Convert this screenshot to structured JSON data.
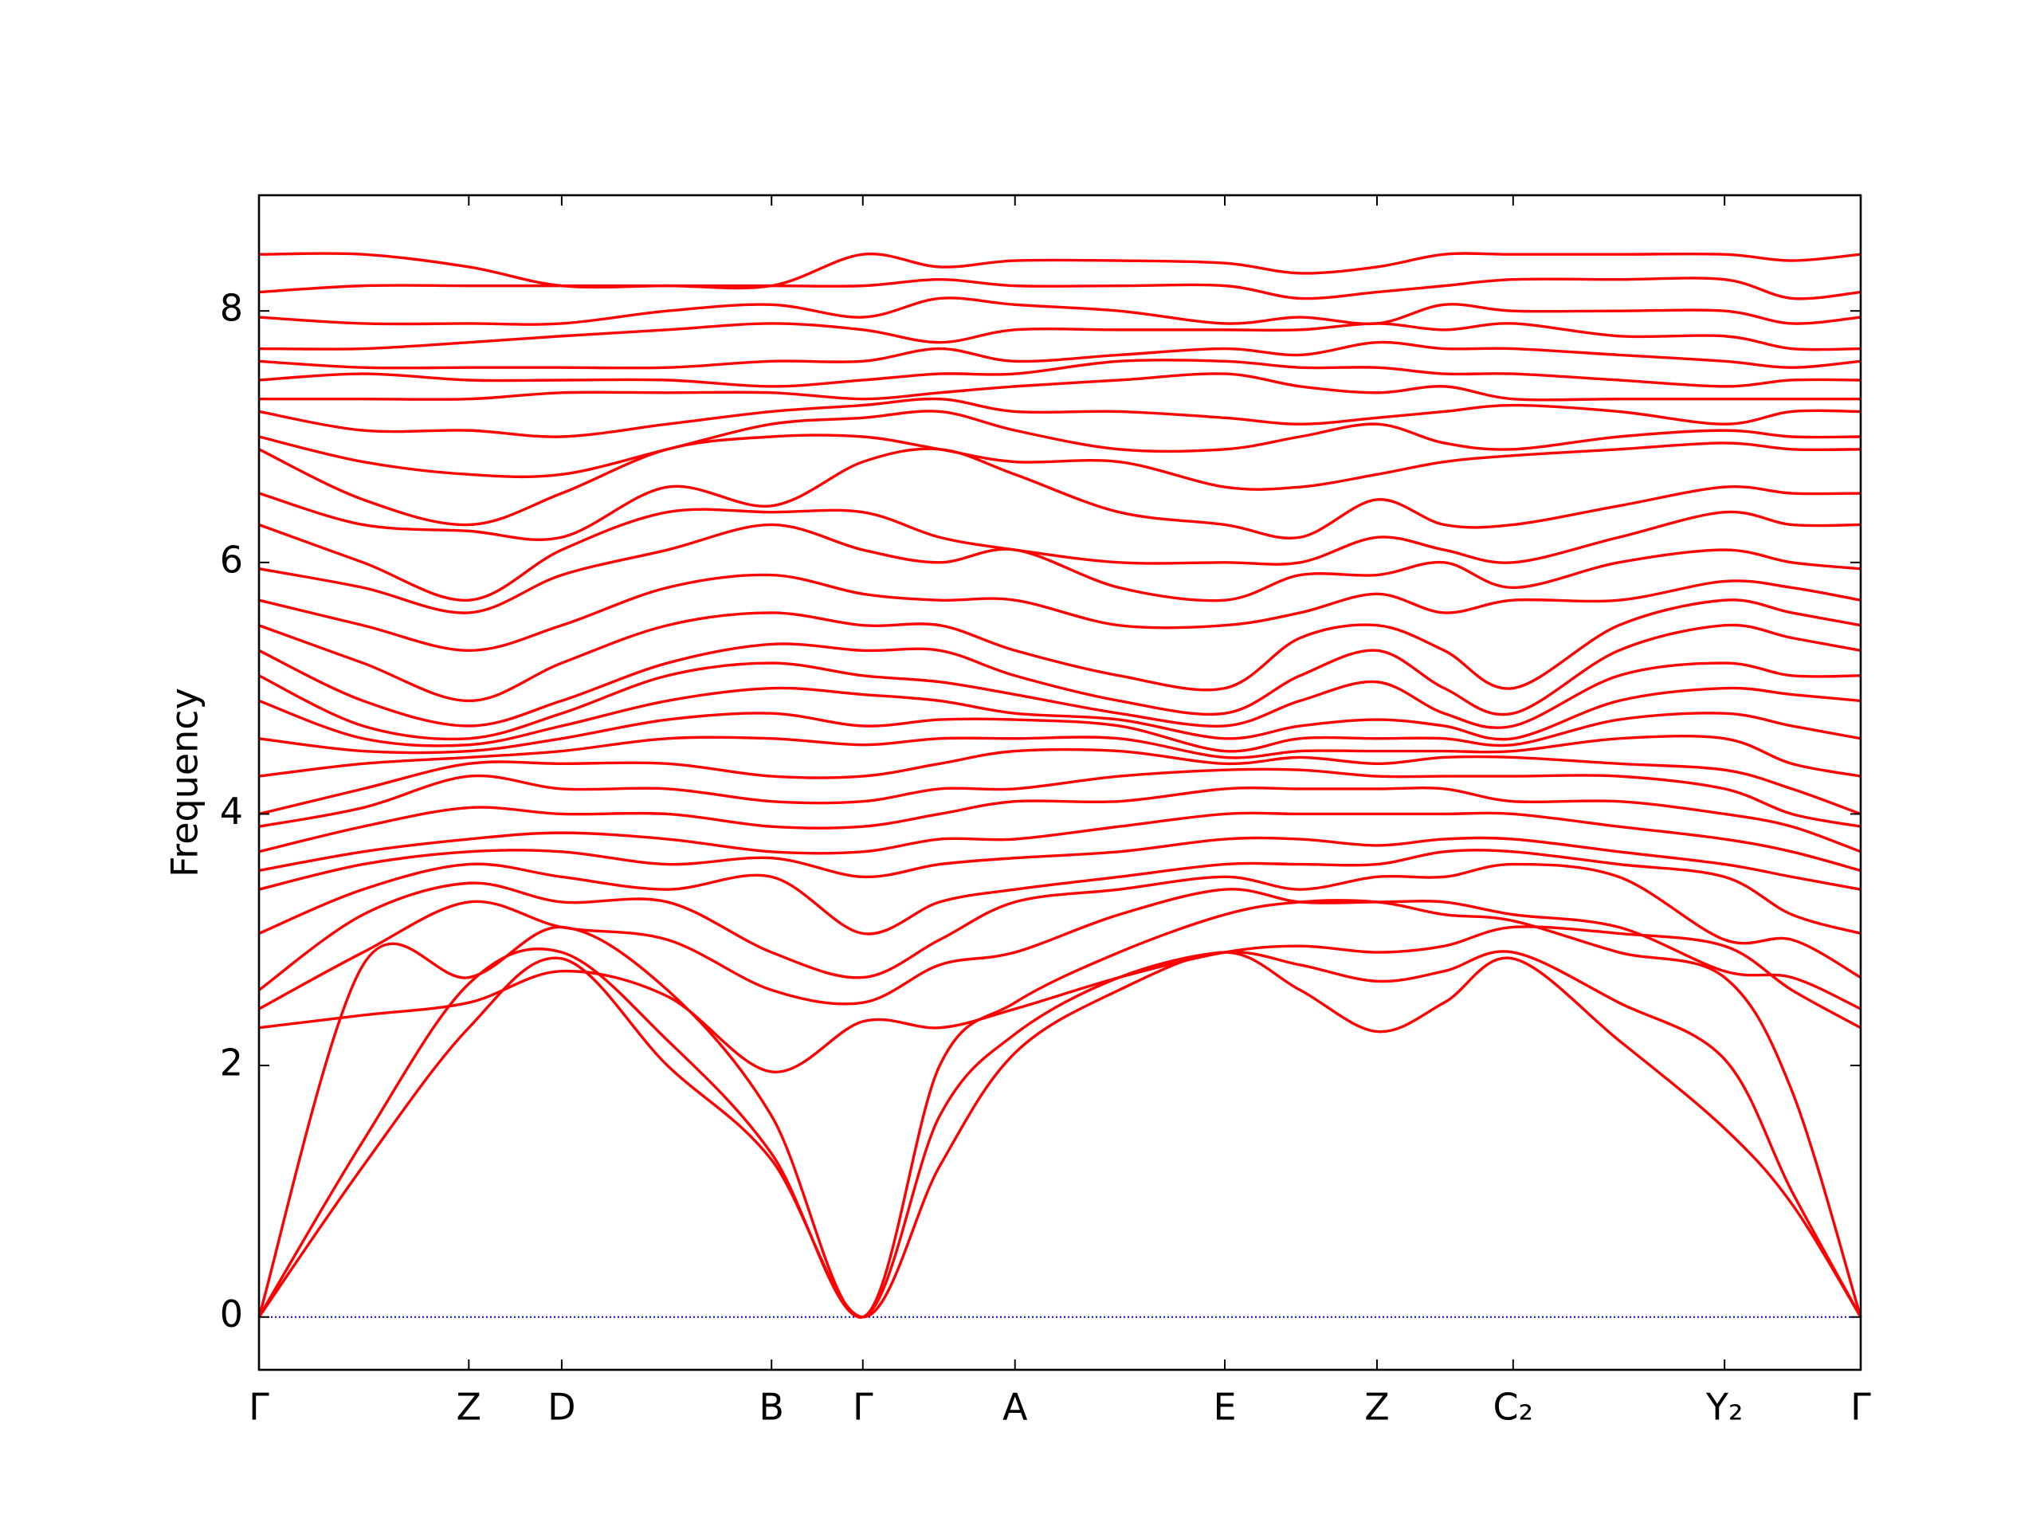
{
  "chart_data": {
    "type": "line",
    "y_label": "Frequency",
    "color": "#ff0000",
    "zero_line": {
      "value": 0,
      "color": "#0000ff",
      "style": "dotted"
    },
    "xlim": [
      0,
      1
    ],
    "ylim": [
      -0.42,
      8.92
    ],
    "yticks": [
      0,
      2,
      4,
      6,
      8
    ],
    "xticks": [
      {
        "value": 0,
        "label": "Γ"
      },
      {
        "value": 0.131,
        "label": "Z"
      },
      {
        "value": 0.189,
        "label": "D"
      },
      {
        "value": 0.32,
        "label": "B"
      },
      {
        "value": 0.377,
        "label": "Γ"
      },
      {
        "value": 0.472,
        "label": "A"
      },
      {
        "value": 0.603,
        "label": "E"
      },
      {
        "value": 0.698,
        "label": "Z"
      },
      {
        "value": 0.783,
        "label": "C₂"
      },
      {
        "value": 0.915,
        "label": "Y₂"
      },
      {
        "value": 1,
        "label": "Γ"
      }
    ],
    "x": [
      0,
      0.065,
      0.131,
      0.189,
      0.255,
      0.32,
      0.377,
      0.425,
      0.472,
      0.537,
      0.603,
      0.65,
      0.698,
      0.74,
      0.783,
      0.849,
      0.915,
      0.957,
      1
    ],
    "series": [
      {
        "values": [
          0,
          1.2,
          2.3,
          2.85,
          2.0,
          1.25,
          0,
          1.2,
          2.1,
          2.6,
          2.9,
          2.6,
          2.27,
          2.5,
          2.85,
          2.2,
          1.5,
          0.9,
          0
        ]
      },
      {
        "values": [
          0,
          1.4,
          2.65,
          2.9,
          2.2,
          1.3,
          0,
          1.6,
          2.25,
          2.7,
          2.9,
          2.8,
          2.67,
          2.75,
          2.9,
          2.5,
          2.05,
          1.0,
          0
        ]
      },
      {
        "values": [
          0,
          2.8,
          2.7,
          3.1,
          2.6,
          1.6,
          0,
          2.0,
          2.5,
          2.9,
          3.2,
          3.3,
          3.3,
          3.2,
          3.15,
          2.9,
          2.7,
          1.8,
          0
        ]
      },
      {
        "values": [
          2.3,
          2.4,
          2.5,
          2.75,
          2.55,
          1.95,
          2.35,
          2.3,
          2.45,
          2.7,
          2.9,
          2.95,
          2.9,
          2.95,
          3.1,
          3.05,
          2.95,
          2.6,
          2.3
        ]
      },
      {
        "values": [
          2.45,
          2.9,
          3.3,
          3.1,
          3.0,
          2.6,
          2.5,
          2.8,
          2.9,
          3.2,
          3.4,
          3.3,
          3.3,
          3.3,
          3.2,
          3.1,
          2.75,
          2.7,
          2.45
        ]
      },
      {
        "values": [
          2.6,
          3.2,
          3.45,
          3.3,
          3.3,
          2.9,
          2.7,
          3.0,
          3.3,
          3.4,
          3.5,
          3.4,
          3.5,
          3.5,
          3.6,
          3.5,
          3.0,
          3.0,
          2.7
        ]
      },
      {
        "values": [
          3.05,
          3.4,
          3.6,
          3.5,
          3.4,
          3.5,
          3.05,
          3.3,
          3.4,
          3.5,
          3.6,
          3.6,
          3.6,
          3.7,
          3.7,
          3.6,
          3.5,
          3.2,
          3.05
        ]
      },
      {
        "values": [
          3.4,
          3.6,
          3.7,
          3.7,
          3.6,
          3.65,
          3.5,
          3.6,
          3.65,
          3.7,
          3.8,
          3.8,
          3.75,
          3.8,
          3.8,
          3.7,
          3.6,
          3.5,
          3.4
        ]
      },
      {
        "values": [
          3.55,
          3.7,
          3.8,
          3.85,
          3.8,
          3.7,
          3.7,
          3.8,
          3.8,
          3.9,
          4.0,
          4.0,
          4.0,
          4.0,
          4.0,
          3.9,
          3.8,
          3.7,
          3.55
        ]
      },
      {
        "values": [
          3.7,
          3.9,
          4.05,
          4.0,
          4.0,
          3.9,
          3.9,
          4.0,
          4.1,
          4.1,
          4.2,
          4.2,
          4.2,
          4.2,
          4.1,
          4.1,
          4.0,
          3.9,
          3.7
        ]
      },
      {
        "values": [
          3.9,
          4.05,
          4.3,
          4.2,
          4.2,
          4.1,
          4.1,
          4.2,
          4.2,
          4.3,
          4.35,
          4.35,
          4.3,
          4.3,
          4.3,
          4.3,
          4.2,
          4.0,
          3.9
        ]
      },
      {
        "values": [
          4.0,
          4.2,
          4.4,
          4.4,
          4.4,
          4.3,
          4.3,
          4.4,
          4.5,
          4.5,
          4.4,
          4.45,
          4.4,
          4.45,
          4.45,
          4.4,
          4.35,
          4.2,
          4.0
        ]
      },
      {
        "values": [
          4.3,
          4.4,
          4.45,
          4.5,
          4.6,
          4.6,
          4.55,
          4.6,
          4.6,
          4.6,
          4.45,
          4.5,
          4.5,
          4.5,
          4.5,
          4.6,
          4.6,
          4.4,
          4.3
        ]
      },
      {
        "values": [
          4.6,
          4.5,
          4.5,
          4.6,
          4.75,
          4.8,
          4.7,
          4.75,
          4.75,
          4.7,
          4.5,
          4.6,
          4.6,
          4.6,
          4.55,
          4.75,
          4.8,
          4.7,
          4.6
        ]
      },
      {
        "values": [
          4.9,
          4.6,
          4.55,
          4.7,
          4.9,
          5.0,
          4.95,
          4.9,
          4.8,
          4.75,
          4.6,
          4.7,
          4.75,
          4.7,
          4.6,
          4.9,
          5.0,
          4.95,
          4.9
        ]
      },
      {
        "values": [
          5.1,
          4.7,
          4.6,
          4.8,
          5.1,
          5.2,
          5.1,
          5.05,
          4.95,
          4.8,
          4.7,
          4.9,
          5.05,
          4.8,
          4.7,
          5.1,
          5.2,
          5.1,
          5.1
        ]
      },
      {
        "values": [
          5.3,
          4.9,
          4.7,
          4.9,
          5.2,
          5.35,
          5.3,
          5.3,
          5.1,
          4.9,
          4.8,
          5.1,
          5.3,
          5.0,
          4.8,
          5.3,
          5.5,
          5.4,
          5.3
        ]
      },
      {
        "values": [
          5.5,
          5.2,
          4.9,
          5.2,
          5.5,
          5.6,
          5.5,
          5.5,
          5.3,
          5.1,
          5.0,
          5.4,
          5.5,
          5.3,
          5.0,
          5.5,
          5.7,
          5.6,
          5.5
        ]
      },
      {
        "values": [
          5.7,
          5.5,
          5.3,
          5.5,
          5.8,
          5.9,
          5.75,
          5.7,
          5.7,
          5.5,
          5.5,
          5.6,
          5.75,
          5.6,
          5.7,
          5.7,
          5.85,
          5.8,
          5.7
        ]
      },
      {
        "values": [
          5.95,
          5.8,
          5.6,
          5.9,
          6.1,
          6.3,
          6.1,
          6.0,
          6.1,
          5.8,
          5.7,
          5.9,
          5.9,
          6.0,
          5.8,
          6.0,
          6.1,
          6.0,
          5.95
        ]
      },
      {
        "values": [
          6.3,
          6.0,
          5.7,
          6.1,
          6.4,
          6.4,
          6.4,
          6.2,
          6.1,
          6.0,
          6.0,
          6.0,
          6.2,
          6.1,
          6.0,
          6.2,
          6.4,
          6.3,
          6.3
        ]
      },
      {
        "values": [
          6.55,
          6.3,
          6.25,
          6.2,
          6.6,
          6.45,
          6.8,
          6.9,
          6.7,
          6.4,
          6.3,
          6.2,
          6.5,
          6.3,
          6.3,
          6.45,
          6.6,
          6.55,
          6.55
        ]
      },
      {
        "values": [
          6.9,
          6.5,
          6.3,
          6.55,
          6.9,
          7.0,
          7.0,
          6.9,
          6.8,
          6.8,
          6.6,
          6.6,
          6.7,
          6.8,
          6.85,
          6.9,
          6.95,
          6.9,
          6.9
        ]
      },
      {
        "values": [
          7.0,
          6.8,
          6.7,
          6.7,
          6.9,
          7.1,
          7.15,
          7.2,
          7.05,
          6.9,
          6.9,
          7.0,
          7.1,
          6.95,
          6.9,
          7.0,
          7.05,
          7.0,
          7.0
        ]
      },
      {
        "values": [
          7.2,
          7.05,
          7.05,
          7.0,
          7.1,
          7.2,
          7.25,
          7.3,
          7.2,
          7.2,
          7.15,
          7.1,
          7.15,
          7.2,
          7.25,
          7.2,
          7.1,
          7.2,
          7.2
        ]
      },
      {
        "values": [
          7.3,
          7.3,
          7.3,
          7.35,
          7.35,
          7.35,
          7.3,
          7.35,
          7.4,
          7.45,
          7.5,
          7.4,
          7.35,
          7.4,
          7.3,
          7.3,
          7.3,
          7.3,
          7.3
        ]
      },
      {
        "values": [
          7.45,
          7.5,
          7.45,
          7.45,
          7.45,
          7.4,
          7.45,
          7.5,
          7.5,
          7.6,
          7.6,
          7.55,
          7.55,
          7.5,
          7.5,
          7.45,
          7.4,
          7.45,
          7.45
        ]
      },
      {
        "values": [
          7.6,
          7.55,
          7.55,
          7.55,
          7.55,
          7.6,
          7.6,
          7.7,
          7.6,
          7.65,
          7.7,
          7.65,
          7.75,
          7.7,
          7.7,
          7.65,
          7.6,
          7.55,
          7.6
        ]
      },
      {
        "values": [
          7.7,
          7.7,
          7.75,
          7.8,
          7.85,
          7.9,
          7.85,
          7.75,
          7.85,
          7.85,
          7.85,
          7.85,
          7.9,
          7.85,
          7.9,
          7.8,
          7.8,
          7.7,
          7.7
        ]
      },
      {
        "values": [
          7.95,
          7.9,
          7.9,
          7.9,
          8.0,
          8.05,
          7.95,
          8.1,
          8.05,
          8.0,
          7.9,
          7.95,
          7.9,
          8.05,
          8.0,
          8.0,
          8.0,
          7.9,
          7.95
        ]
      },
      {
        "values": [
          8.15,
          8.2,
          8.2,
          8.2,
          8.2,
          8.2,
          8.2,
          8.25,
          8.2,
          8.2,
          8.2,
          8.1,
          8.15,
          8.2,
          8.25,
          8.25,
          8.25,
          8.1,
          8.15
        ]
      },
      {
        "values": [
          8.45,
          8.45,
          8.35,
          8.2,
          8.2,
          8.2,
          8.45,
          8.35,
          8.4,
          8.4,
          8.38,
          8.3,
          8.35,
          8.45,
          8.45,
          8.45,
          8.45,
          8.4,
          8.45
        ]
      }
    ]
  }
}
